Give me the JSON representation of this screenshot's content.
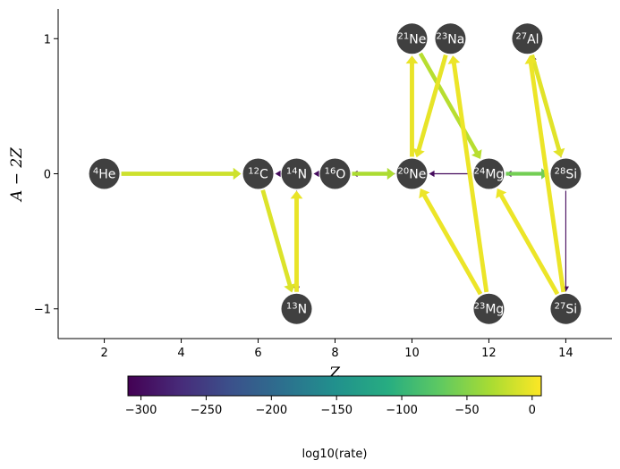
{
  "chart_data": {
    "type": "network",
    "xlabel": "Z",
    "ylabel": "A − 2Z",
    "xlim": [
      0.8,
      15.2
    ],
    "ylim": [
      -1.22,
      1.22
    ],
    "xticks": [
      2,
      4,
      6,
      8,
      10,
      12,
      14
    ],
    "yticks": [
      -1,
      0,
      1
    ],
    "nodes": [
      {
        "id": "he4",
        "mass": "4",
        "symbol": "He",
        "z": 2,
        "n": 0
      },
      {
        "id": "c12",
        "mass": "12",
        "symbol": "C",
        "z": 6,
        "n": 0
      },
      {
        "id": "n14",
        "mass": "14",
        "symbol": "N",
        "z": 7,
        "n": 0
      },
      {
        "id": "o16",
        "mass": "16",
        "symbol": "O",
        "z": 8,
        "n": 0
      },
      {
        "id": "ne20",
        "mass": "20",
        "symbol": "Ne",
        "z": 10,
        "n": 0
      },
      {
        "id": "mg24",
        "mass": "24",
        "symbol": "Mg",
        "z": 12,
        "n": 0
      },
      {
        "id": "si28",
        "mass": "28",
        "symbol": "Si",
        "z": 14,
        "n": 0
      },
      {
        "id": "n13",
        "mass": "13",
        "symbol": "N",
        "z": 7,
        "n": -1
      },
      {
        "id": "mg23",
        "mass": "23",
        "symbol": "Mg",
        "z": 12,
        "n": -1
      },
      {
        "id": "si27",
        "mass": "27",
        "symbol": "Si",
        "z": 14,
        "n": -1
      },
      {
        "id": "ne21",
        "mass": "21",
        "symbol": "Ne",
        "z": 10,
        "n": 1
      },
      {
        "id": "na23",
        "mass": "23",
        "symbol": "Na",
        "z": 11,
        "n": 1
      },
      {
        "id": "al27",
        "mass": "27",
        "symbol": "Al",
        "z": 13,
        "n": 1
      }
    ],
    "edges": [
      {
        "from": "he4",
        "to": "c12",
        "rate": -15
      },
      {
        "from": "c12",
        "to": "n13",
        "rate": -8
      },
      {
        "from": "n13",
        "to": "n14",
        "rate": -2
      },
      {
        "from": "n14",
        "to": "n13",
        "rate": -300
      },
      {
        "from": "n14",
        "to": "c12",
        "rate": -300
      },
      {
        "from": "o16",
        "to": "n14",
        "rate": -300
      },
      {
        "from": "o16",
        "to": "ne20",
        "rate": -30
      },
      {
        "from": "ne20",
        "to": "o16",
        "rate": -300
      },
      {
        "from": "ne20",
        "to": "ne21",
        "rate": -2
      },
      {
        "from": "ne21",
        "to": "mg24",
        "rate": -25
      },
      {
        "from": "na23",
        "to": "ne20",
        "rate": -3
      },
      {
        "from": "mg23",
        "to": "na23",
        "rate": -1
      },
      {
        "from": "mg23",
        "to": "ne20",
        "rate": -1
      },
      {
        "from": "mg24",
        "to": "ne20",
        "rate": -300
      },
      {
        "from": "mg24",
        "to": "si28",
        "rate": -60
      },
      {
        "from": "si28",
        "to": "mg24",
        "rate": -300
      },
      {
        "from": "si27",
        "to": "mg24",
        "rate": -1
      },
      {
        "from": "si27",
        "to": "al27",
        "rate": -1
      },
      {
        "from": "al27",
        "to": "si28",
        "rate": -6
      },
      {
        "from": "si28",
        "to": "al27",
        "rate": -300
      },
      {
        "from": "si28",
        "to": "si27",
        "rate": -300
      }
    ],
    "colorbar": {
      "label": "log10(rate)",
      "range": [
        -310,
        7
      ],
      "ticks": [
        -300,
        -250,
        -200,
        -150,
        -100,
        -50,
        0
      ],
      "colormap": "viridis",
      "orientation": "horizontal"
    },
    "colors": {
      "node": "#404040",
      "axes": "#000000"
    }
  }
}
